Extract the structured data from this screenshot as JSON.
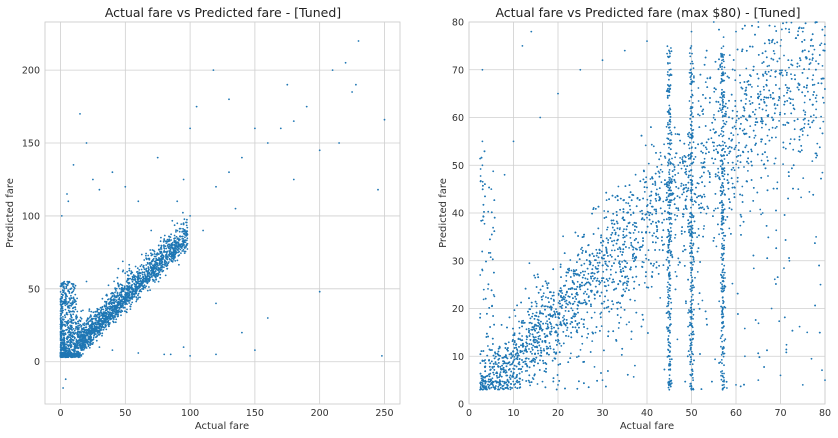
{
  "colors": {
    "points": "#1f77b4",
    "grid": "#cfcfcf"
  },
  "chart_data": [
    {
      "type": "scatter",
      "title": "Actual fare vs Predicted fare - [Tuned]",
      "xlabel": "Actual fare",
      "ylabel": "Predicted fare",
      "xlim": [
        -12,
        262
      ],
      "ylim": [
        -29,
        233
      ],
      "xticks": [
        0,
        50,
        100,
        150,
        200,
        250
      ],
      "yticks": [
        0,
        50,
        100,
        150,
        200
      ],
      "grid": true,
      "series": [
        {
          "points": [
            [
              5,
              8
            ],
            [
              10,
              12
            ],
            [
              15,
              16
            ],
            [
              20,
              18
            ],
            [
              25,
              22
            ],
            [
              30,
              25
            ],
            [
              35,
              30
            ],
            [
              40,
              36
            ],
            [
              45,
              40
            ],
            [
              50,
              45
            ],
            [
              55,
              50
            ],
            [
              60,
              55
            ],
            [
              65,
              60
            ],
            [
              70,
              64
            ],
            [
              75,
              70
            ],
            [
              80,
              76
            ],
            [
              85,
              80
            ],
            [
              90,
              82
            ],
            [
              95,
              95
            ],
            [
              100,
              100
            ],
            [
              3,
              50
            ],
            [
              8,
              40
            ],
            [
              12,
              30
            ],
            [
              20,
              55
            ],
            [
              30,
              10
            ],
            [
              40,
              8
            ],
            [
              60,
              6
            ],
            [
              80,
              5
            ],
            [
              100,
              4
            ],
            [
              120,
              5
            ],
            [
              110,
              90
            ],
            [
              120,
              120
            ],
            [
              130,
              130
            ],
            [
              140,
              140
            ],
            [
              150,
              160
            ],
            [
              160,
              150
            ],
            [
              170,
              160
            ],
            [
              180,
              165
            ],
            [
              190,
              175
            ],
            [
              200,
              145
            ],
            [
              210,
              200
            ],
            [
              220,
              205
            ],
            [
              225,
              185
            ],
            [
              228,
              190
            ],
            [
              230,
              220
            ],
            [
              215,
              150
            ],
            [
              248,
              4
            ],
            [
              250,
              166
            ],
            [
              245,
              118
            ],
            [
              200,
              48
            ],
            [
              160,
              30
            ],
            [
              140,
              20
            ],
            [
              120,
              40
            ],
            [
              118,
              200
            ],
            [
              5,
              115
            ],
            [
              10,
              135
            ],
            [
              15,
              170
            ],
            [
              20,
              150
            ],
            [
              25,
              125
            ],
            [
              2,
              -18
            ],
            [
              4,
              -12
            ],
            [
              1,
              100
            ],
            [
              6,
              110
            ],
            [
              90,
              110
            ],
            [
              95,
              125
            ],
            [
              100,
              160
            ],
            [
              105,
              175
            ],
            [
              130,
              180
            ],
            [
              180,
              125
            ],
            [
              175,
              190
            ],
            [
              135,
              105
            ],
            [
              50,
              120
            ],
            [
              60,
              110
            ],
            [
              70,
              90
            ],
            [
              40,
              130
            ],
            [
              30,
              118
            ],
            [
              75,
              140
            ],
            [
              85,
              5
            ],
            [
              95,
              10
            ],
            [
              150,
              8
            ]
          ]
        }
      ],
      "dense_band": {
        "description_free_trend": "y approx x",
        "x_range": [
          0,
          98
        ],
        "y_floor": 3
      }
    },
    {
      "type": "scatter",
      "title": "Actual fare vs Predicted fare (max $80) - [Tuned]",
      "xlabel": "Actual fare",
      "ylabel": "Predicted fare",
      "xlim": [
        0,
        80
      ],
      "ylim": [
        0,
        80
      ],
      "xticks": [
        0,
        10,
        20,
        30,
        40,
        50,
        60,
        70,
        80
      ],
      "yticks": [
        0,
        10,
        20,
        30,
        40,
        50,
        60,
        70,
        80
      ],
      "grid": true,
      "series": [
        {
          "points": [
            [
              2.5,
              3
            ],
            [
              5,
              5
            ],
            [
              10,
              9
            ],
            [
              15,
              14
            ],
            [
              20,
              19
            ],
            [
              25,
              24
            ],
            [
              30,
              29
            ],
            [
              35,
              34
            ],
            [
              40,
              39
            ],
            [
              45,
              44
            ],
            [
              50,
              49
            ],
            [
              55,
              54
            ],
            [
              60,
              59
            ],
            [
              65,
              64
            ],
            [
              70,
              69
            ],
            [
              75,
              74
            ],
            [
              80,
              79
            ],
            [
              3,
              50
            ],
            [
              3,
              55
            ],
            [
              3,
              70
            ],
            [
              5,
              45
            ],
            [
              8,
              48
            ],
            [
              10,
              55
            ],
            [
              12,
              75
            ],
            [
              14,
              78
            ],
            [
              16,
              60
            ],
            [
              20,
              65
            ],
            [
              25,
              70
            ],
            [
              30,
              72
            ],
            [
              35,
              74
            ],
            [
              40,
              76
            ],
            [
              45,
              70
            ],
            [
              50,
              78
            ],
            [
              55,
              80
            ],
            [
              60,
              78
            ],
            [
              65,
              80
            ],
            [
              70,
              75
            ],
            [
              75,
              78
            ],
            [
              78,
              60
            ],
            [
              45,
              3
            ],
            [
              50,
              3
            ],
            [
              57,
              3
            ],
            [
              60,
              4
            ],
            [
              65,
              5
            ],
            [
              70,
              6
            ],
            [
              75,
              4
            ],
            [
              80,
              5
            ],
            [
              30,
              5
            ],
            [
              20,
              4
            ],
            [
              62,
              10
            ],
            [
              68,
              20
            ],
            [
              72,
              30
            ],
            [
              76,
              15
            ],
            [
              79,
              25
            ],
            [
              66,
              40
            ],
            [
              74,
              45
            ],
            [
              78,
              35
            ]
          ]
        }
      ],
      "dense_band": {
        "x_range": [
          2.5,
          80
        ],
        "y_floor": 3,
        "vertical_streaks_at_x": [
          45,
          50,
          57
        ]
      }
    }
  ]
}
